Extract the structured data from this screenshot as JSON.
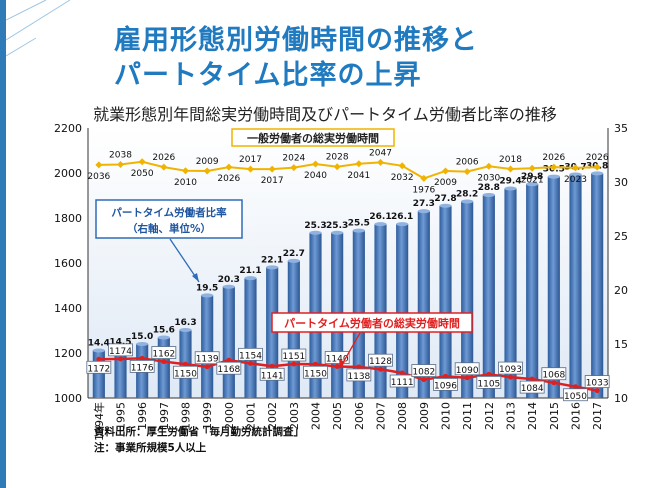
{
  "slide": {
    "title_line1": "雇用形態別労働時間の推移と",
    "title_line2": "パートタイム比率の上昇",
    "source": "資料出所：厚生労働省「毎月勤労統計調査」",
    "note": "注：事業所規模5人以上"
  },
  "chart_data": {
    "type": "bar+line",
    "title": "就業形態別年間総実労働時間及びパートタイム労働者比率の推移",
    "categories": [
      "1994年",
      "1995",
      "1996",
      "1997",
      "1998",
      "1999",
      "2000",
      "2001",
      "2002",
      "2003",
      "2004",
      "2005",
      "2006",
      "2007",
      "2008",
      "2009",
      "2010",
      "2011",
      "2012",
      "2013",
      "2014",
      "2015",
      "2016",
      "2017"
    ],
    "left_axis": {
      "ylim": [
        1000,
        2200
      ],
      "ticks": [
        "1000",
        "1200",
        "1400",
        "1600",
        "1800",
        "2000",
        "2200"
      ]
    },
    "right_axis": {
      "ylim": [
        10,
        35
      ],
      "ticks": [
        "10",
        "15",
        "20",
        "25",
        "30",
        "35"
      ]
    },
    "series": [
      {
        "name": "パートタイム労働者比率",
        "label_lines": [
          "パートタイム労働者比率",
          "（右軸、単位%）"
        ],
        "axis": "right",
        "kind": "bar",
        "color": "#3a6fb5",
        "values": [
          14.4,
          14.5,
          15.0,
          15.6,
          16.3,
          19.5,
          20.3,
          21.1,
          22.1,
          22.7,
          25.3,
          25.3,
          25.5,
          26.1,
          26.1,
          27.3,
          27.8,
          28.2,
          28.8,
          29.4,
          29.8,
          30.5,
          30.7,
          30.8
        ],
        "labels": [
          "14.4",
          "14.5",
          "15.0",
          "15.6",
          "16.3",
          "19.5",
          "20.3",
          "21.1",
          "22.1",
          "22.7",
          "25.3",
          "25.3",
          "25.5",
          "26.1",
          "26.1",
          "27.3",
          "27.8",
          "28.2",
          "28.8",
          "29.4",
          "29.8",
          "30.5",
          "30.7",
          "30.8"
        ]
      },
      {
        "name": "一般労働者の総実労働時間",
        "axis": "left",
        "kind": "line",
        "color": "#f0b400",
        "values": [
          2036,
          2038,
          2050,
          2026,
          2010,
          2009,
          2026,
          2017,
          2017,
          2024,
          2040,
          2028,
          2041,
          2047,
          2032,
          1976,
          2009,
          2006,
          2030,
          2018,
          2021,
          2026,
          2023,
          2026
        ],
        "labels": [
          "2036",
          "2038",
          "2050",
          "2026",
          "2010",
          "2009",
          "2026",
          "2017",
          "2017",
          "2024",
          "2040",
          "2028",
          "2041",
          "2047",
          "2032",
          "1976",
          "2009",
          "2006",
          "2030",
          "2018",
          "2021",
          "2026",
          "2023",
          "2026"
        ]
      },
      {
        "name": "パートタイム労働者の総実労働時間",
        "axis": "left",
        "kind": "line",
        "color": "#e02020",
        "values": [
          1172,
          1174,
          1176,
          1162,
          1150,
          1139,
          1168,
          1154,
          1141,
          1151,
          1150,
          1140,
          1138,
          1128,
          1111,
          1082,
          1096,
          1090,
          1105,
          1093,
          1084,
          1068,
          1050,
          1033
        ],
        "labels": [
          "1172",
          "1174",
          "1176",
          "1162",
          "1150",
          "1139",
          "1168",
          "1154",
          "1141",
          "1151",
          "1150",
          "1140",
          "1138",
          "1128",
          "1111",
          "1082",
          "1096",
          "1090",
          "1105",
          "1093",
          "1084",
          "1068",
          "1050",
          "1033"
        ]
      }
    ]
  }
}
